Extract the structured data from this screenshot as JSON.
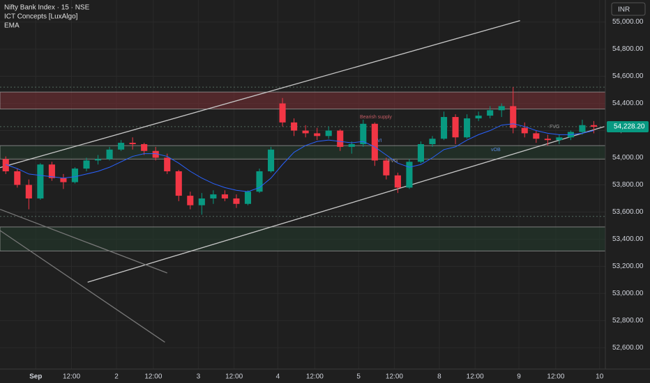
{
  "chart_data": {
    "type": "candlestick",
    "title": "Nifty Bank Index · 15 · NSE",
    "indicators": [
      "ICT Concepts [LuxAlgo]",
      "EMA"
    ],
    "currency": "INR",
    "up_color": "#089981",
    "down_color": "#f23645",
    "ema_color": "#2962ff",
    "x": [
      0.5,
      1.5,
      2.5,
      3.5,
      4.5,
      5.5,
      6.5,
      7.5,
      8.5,
      9.5,
      10.5,
      11.5,
      12.5,
      13.5,
      14.5,
      15.5,
      16.5,
      17.5,
      18.5,
      19.5,
      20.5,
      21.5,
      22.5,
      23.5,
      24.5,
      25.5,
      26.5,
      27.5,
      28.5,
      29.5,
      30.5,
      31.5,
      32.5,
      33.5,
      34.5,
      35.5,
      36.5,
      37.5,
      38.5,
      39.5,
      40.5,
      41.5,
      42.5,
      43.5,
      44.5,
      45.5,
      46.5,
      47.5,
      48.5,
      49.5,
      50.5,
      51.5
    ],
    "open": [
      53990,
      53900,
      53800,
      53700,
      53950,
      53850,
      53820,
      53920,
      53980,
      53990,
      54060,
      54110,
      54100,
      54050,
      54000,
      53900,
      53720,
      53650,
      53700,
      53730,
      53700,
      53660,
      53750,
      53900,
      54400,
      54260,
      54200,
      54180,
      54160,
      54200,
      54080,
      54100,
      54250,
      53980,
      53870,
      53780,
      53970,
      54100,
      54140,
      54300,
      54150,
      54290,
      54310,
      54350,
      54380,
      54220,
      54180,
      54140,
      54130,
      54150,
      54190,
      54240
    ],
    "high": [
      54010,
      53920,
      53840,
      53960,
      53970,
      53880,
      53930,
      54000,
      54020,
      54080,
      54130,
      54150,
      54110,
      54080,
      54030,
      53910,
      53750,
      53740,
      53760,
      53760,
      53730,
      53760,
      53920,
      54080,
      54440,
      54290,
      54240,
      54220,
      54230,
      54210,
      54120,
      54280,
      54260,
      54000,
      53890,
      53990,
      54120,
      54160,
      54340,
      54320,
      54320,
      54340,
      54380,
      54400,
      54520,
      54260,
      54200,
      54170,
      54170,
      54200,
      54280,
      54270
    ],
    "low": [
      53880,
      53780,
      53620,
      53690,
      53830,
      53770,
      53810,
      53900,
      53950,
      53980,
      54050,
      54060,
      54020,
      53980,
      53880,
      53680,
      53620,
      53580,
      53660,
      53680,
      53630,
      53650,
      53740,
      53890,
      54230,
      54160,
      54150,
      54130,
      54140,
      54050,
      54030,
      54080,
      53940,
      53840,
      53740,
      53770,
      53960,
      54080,
      54130,
      54100,
      54140,
      54270,
      54290,
      54300,
      54180,
      54150,
      54110,
      54090,
      54100,
      54130,
      54170,
      54180
    ],
    "close": [
      53900,
      53800,
      53700,
      53950,
      53850,
      53820,
      53920,
      53980,
      53990,
      54060,
      54110,
      54100,
      54050,
      54000,
      53900,
      53720,
      53650,
      53700,
      53730,
      53700,
      53660,
      53750,
      53900,
      54060,
      54260,
      54200,
      54180,
      54160,
      54200,
      54080,
      54100,
      54250,
      53980,
      53870,
      53780,
      53970,
      54100,
      54140,
      54300,
      54150,
      54290,
      54310,
      54350,
      54380,
      54220,
      54180,
      54140,
      54130,
      54150,
      54190,
      54240,
      54228.2
    ],
    "ema": [
      53950,
      53920,
      53880,
      53870,
      53860,
      53850,
      53860,
      53880,
      53900,
      53930,
      53970,
      54010,
      54030,
      54030,
      54010,
      53960,
      53900,
      53850,
      53810,
      53780,
      53760,
      53750,
      53780,
      53850,
      53950,
      54040,
      54090,
      54120,
      54130,
      54120,
      54110,
      54120,
      54080,
      54020,
      53960,
      53930,
      53950,
      54000,
      54060,
      54080,
      54130,
      54170,
      54200,
      54240,
      54250,
      54230,
      54200,
      54180,
      54170,
      54170,
      54180,
      54200
    ],
    "zones": [
      {
        "top": 54484,
        "bottom": 54359,
        "color": "#7a2f35"
      },
      {
        "top": 54089,
        "bottom": 53990,
        "color": "#233a2c"
      },
      {
        "top": 53490,
        "bottom": 53313,
        "color": "#233a2c"
      }
    ],
    "levels": [
      54520,
      54229,
      53568
    ],
    "trend_lines": [
      {
        "x": [
          0,
          45.1
        ],
        "y": [
          53927,
          55010
        ],
        "color": "#c8c8c8"
      },
      {
        "x": [
          7.6,
          52.4
        ],
        "y": [
          53083,
          54229
        ],
        "color": "#c8c8c8"
      },
      {
        "x": [
          0,
          14.5
        ],
        "y": [
          53620,
          53151
        ],
        "color": "#777777"
      },
      {
        "x": [
          0,
          14.3
        ],
        "y": [
          53464,
          52641
        ],
        "color": "#777777"
      }
    ],
    "annotations": [
      "Bearish supply",
      "VI",
      "FVG",
      "vOB",
      "FVG"
    ],
    "last_price": {
      "value": 54228.2,
      "label": "54,228.20"
    },
    "xlim": [
      0,
      52.5
    ],
    "xticks": [
      {
        "value": 3.1,
        "label": "Sep"
      },
      {
        "value": 6.2,
        "label": "12:00"
      },
      {
        "value": 10.1,
        "label": "2"
      },
      {
        "value": 13.3,
        "label": "12:00"
      },
      {
        "value": 17.2,
        "label": "3"
      },
      {
        "value": 20.3,
        "label": "12:00"
      },
      {
        "value": 24.1,
        "label": "4"
      },
      {
        "value": 27.3,
        "label": "12:00"
      },
      {
        "value": 31.1,
        "label": "5"
      },
      {
        "value": 34.2,
        "label": "12:00"
      },
      {
        "value": 38.1,
        "label": "8"
      },
      {
        "value": 41.2,
        "label": "12:00"
      },
      {
        "value": 45.0,
        "label": "9"
      },
      {
        "value": 48.2,
        "label": "12:00"
      },
      {
        "value": 52.0,
        "label": "10"
      }
    ],
    "ylim": [
      52443,
      55162
    ],
    "yticks": [
      {
        "value": 52600,
        "label": "52,600.00"
      },
      {
        "value": 52800,
        "label": "52,800.00"
      },
      {
        "value": 53000,
        "label": "53,000.00"
      },
      {
        "value": 53200,
        "label": "53,200.00"
      },
      {
        "value": 53400,
        "label": "53,400.00"
      },
      {
        "value": 53600,
        "label": "53,600.00"
      },
      {
        "value": 53800,
        "label": "53,800.00"
      },
      {
        "value": 54000,
        "label": "54,000.00"
      },
      {
        "value": 54200,
        "label": "54,200.00"
      },
      {
        "value": 54400,
        "label": "54,400.00"
      },
      {
        "value": 54600,
        "label": "54,600.00"
      },
      {
        "value": 54800,
        "label": "54,800.00"
      },
      {
        "value": 55000,
        "label": "55,000.00"
      }
    ]
  }
}
